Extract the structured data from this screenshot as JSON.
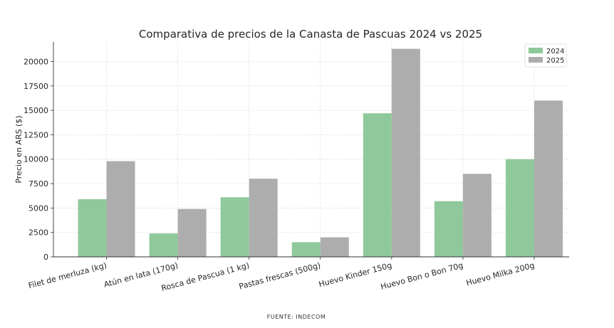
{
  "chart_data": {
    "type": "bar",
    "title": "Comparativa de precios de la Canasta de Pascuas 2024 vs 2025",
    "xlabel": "",
    "ylabel": "Precio en ARS ($)",
    "source": "FUENTE: INDECOM",
    "categories": [
      "Filet de merluza (kg)",
      "Atún en lata (170g)",
      "Rosca de Pascua (1 kg)",
      "Pastas frescas (500g)",
      "Huevo Kinder 150g",
      "Huevo Bon o Bon 70g",
      "Huevo Milka 200g"
    ],
    "series": [
      {
        "name": "2024",
        "color": "#8fc99b",
        "values": [
          5900,
          2400,
          6100,
          1500,
          14700,
          5700,
          10000
        ]
      },
      {
        "name": "2025",
        "color": "#adadad",
        "values": [
          9800,
          4900,
          8000,
          2000,
          21300,
          8500,
          16000
        ]
      }
    ],
    "ylim": [
      0,
      22000
    ],
    "yticks": [
      "0",
      "2500",
      "5000",
      "7500",
      "10000",
      "12500",
      "15000",
      "17500",
      "20000"
    ],
    "grid": true,
    "legend_position": "top-right"
  }
}
